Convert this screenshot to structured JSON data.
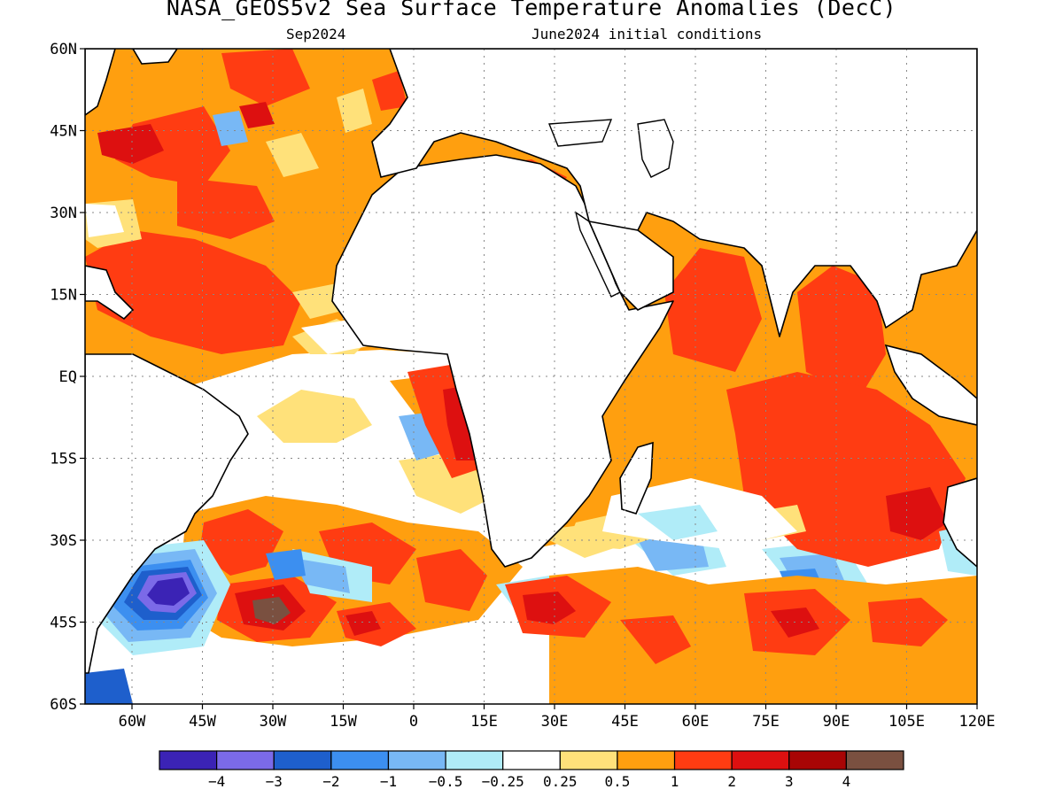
{
  "title": "NASA_GEOS5v2 Sea Surface Temperature Anomalies (DecC)",
  "subtitle_left": "Sep2024",
  "subtitle_right": "June2024 initial conditions",
  "map": {
    "lon_range": [
      -70,
      120
    ],
    "lat_range": [
      -60,
      60
    ],
    "lat_labels": [
      {
        "lat": 60,
        "label": "60N"
      },
      {
        "lat": 45,
        "label": "45N"
      },
      {
        "lat": 30,
        "label": "30N"
      },
      {
        "lat": 15,
        "label": "15N"
      },
      {
        "lat": 0,
        "label": "EQ"
      },
      {
        "lat": -15,
        "label": "15S"
      },
      {
        "lat": -30,
        "label": "30S"
      },
      {
        "lat": -45,
        "label": "45S"
      },
      {
        "lat": -60,
        "label": "60S"
      }
    ],
    "lon_labels": [
      {
        "lon": -60,
        "label": "60W"
      },
      {
        "lon": -45,
        "label": "45W"
      },
      {
        "lon": -30,
        "label": "30W"
      },
      {
        "lon": -15,
        "label": "15W"
      },
      {
        "lon": 0,
        "label": "0"
      },
      {
        "lon": 15,
        "label": "15E"
      },
      {
        "lon": 30,
        "label": "30E"
      },
      {
        "lon": 45,
        "label": "45E"
      },
      {
        "lon": 60,
        "label": "60E"
      },
      {
        "lon": 75,
        "label": "75E"
      },
      {
        "lon": 90,
        "label": "90E"
      },
      {
        "lon": 105,
        "label": "105E"
      },
      {
        "lon": 120,
        "label": "120E"
      }
    ],
    "grid": true
  },
  "colorbar": {
    "colors": [
      "#3b23b5",
      "#7b6ae8",
      "#1e5fcc",
      "#3c8ff0",
      "#78b8f5",
      "#b0ecf8",
      "#ffffff",
      "#ffe17a",
      "#ff9f0f",
      "#ff3c12",
      "#dd1010",
      "#a80505",
      "#7a5040"
    ],
    "tick_labels": [
      "−4",
      "−3",
      "−2",
      "−1",
      "−0.5",
      "−0.25",
      "0.25",
      "0.5",
      "1",
      "2",
      "3",
      "4"
    ]
  },
  "palette": {
    "land": "#ffffff",
    "ocean_base": "#ff9f0f",
    "anom_strong_warm": "#ff3c12",
    "anom_very_warm": "#dd1010",
    "anom_extreme": "#a80505",
    "anom_max": "#7a5040",
    "anom_mild_warm": "#ffe17a",
    "anom_neutral": "#ffffff",
    "anom_slight_cold": "#b0ecf8",
    "anom_cold": "#78b8f5",
    "anom_colder": "#3c8ff0",
    "anom_very_cold": "#1e5fcc",
    "anom_extreme_cold": "#7b6ae8",
    "anom_min": "#3b23b5"
  }
}
